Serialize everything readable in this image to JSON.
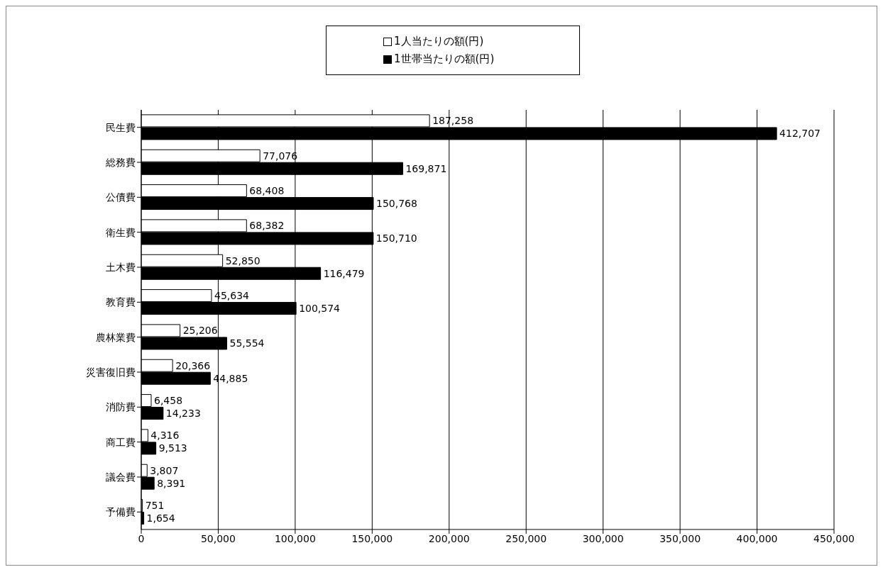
{
  "chart_data": {
    "type": "bar",
    "orientation": "horizontal",
    "categories": [
      "民生費",
      "総務費",
      "公債費",
      "衛生費",
      "土木費",
      "教育費",
      "農林業費",
      "災害復旧費",
      "消防費",
      "商工費",
      "議会費",
      "予備費"
    ],
    "series": [
      {
        "name": "1人当たりの額(円)",
        "color": "#ffffff",
        "values": [
          187258,
          77076,
          68408,
          68382,
          52850,
          45634,
          25206,
          20366,
          6458,
          4316,
          3807,
          751
        ],
        "value_labels": [
          "187,258",
          "77,076",
          "68,408",
          "68,382",
          "52,850",
          "45,634",
          "25,206",
          "20,366",
          "6,458",
          "4,316",
          "3,807",
          "751"
        ]
      },
      {
        "name": "1世帯当たりの額(円)",
        "color": "#000000",
        "values": [
          412707,
          169871,
          150768,
          150710,
          116479,
          100574,
          55554,
          44885,
          14233,
          9513,
          8391,
          1654
        ],
        "value_labels": [
          "412,707",
          "169,871",
          "150,768",
          "150,710",
          "116,479",
          "100,574",
          "55,554",
          "44,885",
          "14,233",
          "9,513",
          "8,391",
          "1,654"
        ]
      }
    ],
    "xlim": [
      0,
      450000
    ],
    "xticks": [
      0,
      {
        "value": 50000,
        "label": "50,000"
      },
      {
        "value": 100000,
        "label": "100,000"
      },
      {
        "value": 150000,
        "label": "150,000"
      },
      {
        "value": 200000,
        "label": "200,000"
      },
      {
        "value": 250000,
        "label": "250,000"
      },
      {
        "value": 300000,
        "label": "300,000"
      },
      {
        "value": 350000,
        "label": "350,000"
      },
      {
        "value": 400000,
        "label": "400,000"
      },
      {
        "value": 450000,
        "label": "450,000"
      }
    ],
    "grid": "x",
    "legend": "top"
  }
}
